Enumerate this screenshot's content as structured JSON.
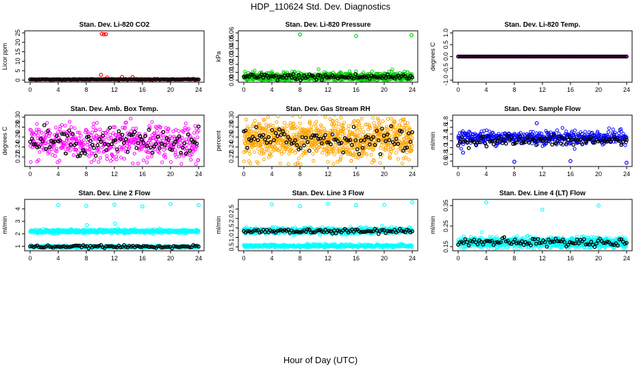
{
  "title": "HDP_110624  Std. Dev. Diagnostics",
  "xlabel": "Hour of Day (UTC)",
  "x_ticks": [
    0,
    4,
    8,
    12,
    16,
    20,
    24
  ],
  "xlim": [
    0,
    24
  ],
  "chart_data": [
    {
      "type": "scatter",
      "title": "Stan. Dev. Li-820 CO2",
      "ylabel": "Licor ppm",
      "ylim": [
        0,
        25
      ],
      "y_ticks": [
        "0",
        "5",
        "10",
        "15",
        "20",
        "25"
      ],
      "grid": false,
      "series": [
        {
          "color": "#ff0000",
          "baseline": 0.4,
          "spread": 0.15,
          "count": 300,
          "outliers": [
            [
              10.2,
              24.5
            ],
            [
              10.5,
              24.2
            ],
            [
              10.8,
              24.3
            ],
            [
              10.1,
              2.8
            ],
            [
              11,
              1.4
            ],
            [
              13.1,
              1.7
            ],
            [
              14.6,
              1.6
            ]
          ]
        },
        {
          "color": "#000000",
          "baseline": 0.4,
          "spread": 0.1,
          "count": 96
        }
      ]
    },
    {
      "type": "scatter",
      "title": "Stan. Dev. Li-820 Pressure",
      "ylabel": "kPa",
      "ylim": [
        0,
        0.06
      ],
      "y_ticks": [
        "0.00",
        "0.01",
        "0.02",
        "0.03",
        "0.04",
        "0.05",
        "0.06"
      ],
      "grid": false,
      "series": [
        {
          "color": "#00cc00",
          "baseline": 0.004,
          "spread": 0.003,
          "count": 700,
          "outliers": [
            [
              8,
              0.058
            ],
            [
              16,
              0.056
            ],
            [
              23.9,
              0.057
            ]
          ]
        },
        {
          "color": "#000000",
          "baseline": 0.004,
          "spread": 0.002,
          "count": 96
        }
      ]
    },
    {
      "type": "scatter",
      "title": "Stan. Dev. Li-820 Temp.",
      "ylabel": "degrees C",
      "ylim": [
        -1,
        1
      ],
      "y_ticks": [
        "-1.0",
        "-0.5",
        "0.0",
        "0.5",
        "1.0"
      ],
      "grid": false,
      "series": [
        {
          "color": "#ff00ff",
          "baseline": 0.0,
          "spread": 0.0,
          "count": 300
        },
        {
          "color": "#000000",
          "baseline": 0.0,
          "spread": 0.0,
          "count": 96
        }
      ]
    },
    {
      "type": "scatter",
      "title": "Stan. Dev. Amb. Box Temp.",
      "ylabel": "degrees C",
      "ylim": [
        0.205,
        0.3
      ],
      "y_ticks": [
        "0.22",
        "0.24",
        "0.26",
        "0.28",
        "0.30"
      ],
      "grid": false,
      "series": [
        {
          "color": "#ff00ff",
          "baseline": 0.25,
          "spread": 0.018,
          "count": 500
        },
        {
          "color": "#000000",
          "baseline": 0.25,
          "spread": 0.013,
          "count": 96
        }
      ]
    },
    {
      "type": "scatter",
      "title": "Stan. Dev. Gas Stream RH",
      "ylabel": "percent",
      "ylim": [
        0.205,
        0.3
      ],
      "y_ticks": [
        "0.22",
        "0.24",
        "0.26",
        "0.28",
        "0.30"
      ],
      "grid": false,
      "series": [
        {
          "color": "#ffa500",
          "baseline": 0.255,
          "spread": 0.02,
          "count": 900
        },
        {
          "color": "#000000",
          "baseline": 0.255,
          "spread": 0.012,
          "count": 96
        }
      ]
    },
    {
      "type": "scatter",
      "title": "Stan. Dev. Sample Flow",
      "ylabel": "ml/min",
      "ylim": [
        0.5,
        1.9
      ],
      "y_ticks": [
        "0.6",
        "0.8",
        "1.0",
        "1.2",
        "1.4",
        "1.6",
        "1.8"
      ],
      "grid": false,
      "series": [
        {
          "color": "#0000ff",
          "baseline": 1.3,
          "spread": 0.1,
          "count": 500,
          "outliers": [
            [
              8,
              0.58
            ],
            [
              16,
              0.6
            ],
            [
              24,
              0.55
            ],
            [
              0.7,
              0.85
            ],
            [
              11.2,
              1.72
            ]
          ]
        },
        {
          "color": "#000000",
          "baseline": 1.2,
          "spread": 0.08,
          "count": 96
        }
      ]
    },
    {
      "type": "scatter",
      "title": "Stan. Dev. Line 2 Flow",
      "ylabel": "ml/min",
      "ylim": [
        0.8,
        4.6
      ],
      "y_ticks": [
        "1",
        "2",
        "3",
        "4"
      ],
      "grid": false,
      "series": [
        {
          "color": "#00ffff",
          "baseline": 2.2,
          "spread": 0.07,
          "count": 700,
          "outliers": [
            [
              4,
              4.3
            ],
            [
              8,
              4.25
            ],
            [
              12,
              4.35
            ],
            [
              16,
              4.2
            ],
            [
              20,
              4.4
            ],
            [
              24,
              4.3
            ],
            [
              8.1,
              2.7
            ],
            [
              12.1,
              2.8
            ]
          ]
        },
        {
          "color": "#00ffff",
          "baseline": 0.95,
          "spread": 0.05,
          "count": 500
        },
        {
          "color": "#000000",
          "baseline": 0.97,
          "spread": 0.05,
          "count": 96
        }
      ]
    },
    {
      "type": "scatter",
      "title": "Stan. Dev. Line 3 Flow",
      "ylabel": "ml/min",
      "ylim": [
        0.4,
        2.9
      ],
      "y_ticks": [
        "0.5",
        "1.0",
        "1.5",
        "2.0",
        "2.5"
      ],
      "grid": false,
      "series": [
        {
          "color": "#00ffff",
          "baseline": 1.35,
          "spread": 0.08,
          "count": 700,
          "outliers": [
            [
              4,
              2.75
            ],
            [
              8,
              2.65
            ],
            [
              12,
              2.78
            ],
            [
              16,
              2.7
            ],
            [
              20,
              2.72
            ],
            [
              24,
              2.85
            ]
          ]
        },
        {
          "color": "#00ffff",
          "baseline": 0.55,
          "spread": 0.04,
          "count": 500
        },
        {
          "color": "#000000",
          "baseline": 1.32,
          "spread": 0.06,
          "count": 96
        }
      ]
    },
    {
      "type": "scatter",
      "title": "Stan. Dev. Line 4 (LT) Flow",
      "ylabel": "ml/min",
      "ylim": [
        0.14,
        0.37
      ],
      "y_ticks": [
        "0.15",
        "0.25",
        "0.35"
      ],
      "grid": false,
      "series": [
        {
          "color": "#00ffff",
          "baseline": 0.17,
          "spread": 0.012,
          "count": 900,
          "outliers": [
            [
              4,
              0.365
            ],
            [
              12,
              0.33
            ],
            [
              20,
              0.35
            ]
          ]
        },
        {
          "color": "#000000",
          "baseline": 0.172,
          "spread": 0.01,
          "count": 96
        }
      ]
    }
  ]
}
